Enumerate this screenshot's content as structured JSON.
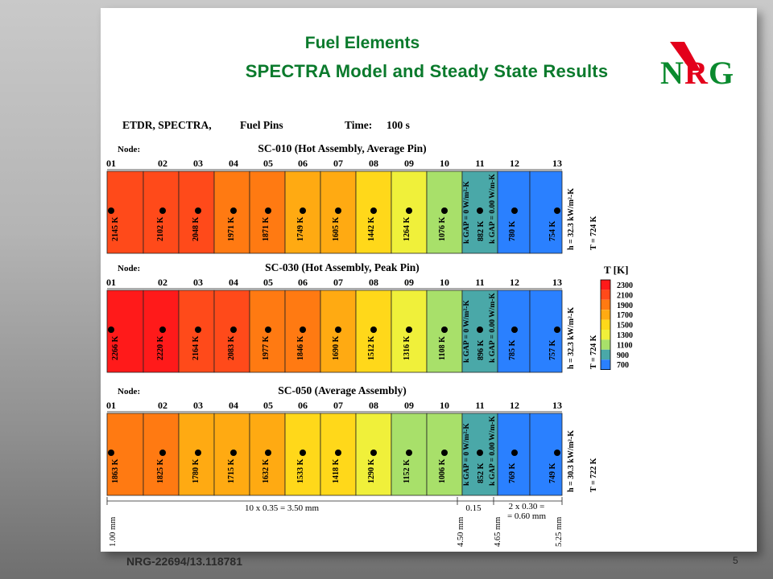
{
  "slide": {
    "title_line1": "Fuel Elements",
    "title_line2": "SPECTRA Model and Steady State Results",
    "footer": "NRG-22694/13.118781",
    "page_number": "5",
    "logo_text": "NRG"
  },
  "header": {
    "left": "ETDR, SPECTRA,",
    "middle": "Fuel Pins",
    "time_label": "Time:",
    "time_value": "100 s"
  },
  "node_label": "Node:",
  "node_numbers": [
    "01",
    "02",
    "03",
    "04",
    "05",
    "06",
    "07",
    "08",
    "09",
    "10",
    "11",
    "12",
    "13"
  ],
  "panels": [
    {
      "title": "SC-010 (Hot Assembly, Average Pin)",
      "temps": [
        "2145 K",
        "2102 K",
        "2048 K",
        "1971 K",
        "1871 K",
        "1749 K",
        "1605 K",
        "1442 K",
        "1264 K",
        "1076 K",
        "882 K",
        "780 K",
        "754 K"
      ],
      "temp_values": [
        2145,
        2102,
        2048,
        1971,
        1871,
        1749,
        1605,
        1442,
        1264,
        1076,
        882,
        780,
        754
      ],
      "gap_k1": "k",
      "gap_line1": "GAP = 0 W/m²-K",
      "gap_line2": "GAP = 0.00 W/m-K",
      "h_text": "h = 32.3 kW/m²-K",
      "T_text": "T = 724 K"
    },
    {
      "title": "SC-030 (Hot Assembly, Peak Pin)",
      "temps": [
        "2266 K",
        "2220 K",
        "2164 K",
        "2083 K",
        "1977 K",
        "1846 K",
        "1690 K",
        "1512 K",
        "1316 K",
        "1108 K",
        "896 K",
        "785 K",
        "757 K"
      ],
      "temp_values": [
        2266,
        2220,
        2164,
        2083,
        1977,
        1846,
        1690,
        1512,
        1316,
        1108,
        896,
        785,
        757
      ],
      "gap_k1": "k",
      "gap_line1": "GAP = 0 W/m²-K",
      "gap_line2": "GAP = 0.00 W/m-K",
      "h_text": "h = 32.3 kW/m²-K",
      "T_text": "T = 724 K"
    },
    {
      "title": "SC-050 (Average Assembly)",
      "temps": [
        "1863 K",
        "1825 K",
        "1780 K",
        "1715 K",
        "1632 K",
        "1533 K",
        "1418 K",
        "1290 K",
        "1152 K",
        "1006 K",
        "852 K",
        "769 K",
        "749 K"
      ],
      "temp_values": [
        1863,
        1825,
        1780,
        1715,
        1632,
        1533,
        1418,
        1290,
        1152,
        1006,
        852,
        769,
        749
      ],
      "gap_k1": "k",
      "gap_line1": "GAP = 0 W/m²-K",
      "gap_line2": "GAP = 0.00 W/m-K",
      "h_text": "h = 30.3 kW/m²-K",
      "T_text": "T = 722 K"
    }
  ],
  "legend": {
    "title": "T [K]",
    "entries": [
      {
        "label": "2300",
        "color": "#ff1a1a"
      },
      {
        "label": "2100",
        "color": "#ff4a1a"
      },
      {
        "label": "1900",
        "color": "#ff7a12"
      },
      {
        "label": "1700",
        "color": "#ffaa12"
      },
      {
        "label": "1500",
        "color": "#ffd81a"
      },
      {
        "label": "1300",
        "color": "#f0f03a"
      },
      {
        "label": "1100",
        "color": "#a8e06a"
      },
      {
        "label": "900",
        "color": "#4aa8a8"
      },
      {
        "label": "700",
        "color": "#2a80ff"
      }
    ]
  },
  "dimensions": {
    "main": "10 x 0.35 = 3.50 mm",
    "gap": "0.15",
    "clad_line1": "2 x 0.30 =",
    "clad_line2": "= 0.60 mm",
    "marks": [
      "1.00 mm",
      "4.50 mm",
      "4.65 mm",
      "5.25 mm"
    ]
  }
}
